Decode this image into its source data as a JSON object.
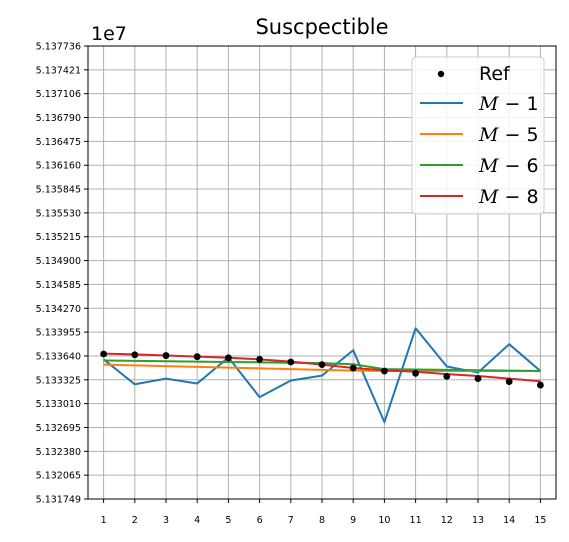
{
  "chart_data": {
    "type": "line",
    "title": "Suscpectible",
    "y_offset_label": "1e7",
    "xlabel": "",
    "ylabel": "",
    "x": [
      1,
      2,
      3,
      4,
      5,
      6,
      7,
      8,
      9,
      10,
      11,
      12,
      13,
      14,
      15
    ],
    "x_tick_labels": [
      "1",
      "2",
      "3",
      "4",
      "5",
      "6",
      "7",
      "8",
      "9",
      "10",
      "11",
      "12",
      "13",
      "14",
      "15"
    ],
    "xlim": [
      0.5,
      15.5
    ],
    "ylim": [
      5.131749,
      5.137736
    ],
    "y_tick_labels": [
      "5.131749",
      "5.132065",
      "5.132380",
      "5.132695",
      "5.133010",
      "5.133325",
      "5.133640",
      "5.133955",
      "5.134270",
      "5.134585",
      "5.134900",
      "5.135215",
      "5.135530",
      "5.135845",
      "5.136160",
      "5.136475",
      "5.136790",
      "5.137106",
      "5.137421",
      "5.137736"
    ],
    "grid": true,
    "legend_position": "top-right",
    "reference": {
      "name": "Ref",
      "values": [
        5.133665,
        5.133655,
        5.133645,
        5.13363,
        5.133615,
        5.133595,
        5.13356,
        5.133525,
        5.13348,
        5.13344,
        5.13341,
        5.13337,
        5.13334,
        5.1333,
        5.133255
      ],
      "color": "#000000"
    },
    "series": [
      {
        "name": "M-1",
        "legend_main": "M",
        "legend_tail": "1",
        "color": "#1f77b4",
        "values": [
          5.133595,
          5.133265,
          5.13334,
          5.133275,
          5.13362,
          5.133095,
          5.133315,
          5.13338,
          5.133715,
          5.132765,
          5.134005,
          5.1335,
          5.13342,
          5.133795,
          5.13344
        ]
      },
      {
        "name": "M-5",
        "legend_main": "M",
        "legend_tail": "5",
        "color": "#ff7f0e",
        "values": [
          5.133525,
          5.133515,
          5.133505,
          5.133495,
          5.133485,
          5.133475,
          5.133465,
          5.133455,
          5.133445,
          5.13344,
          5.13344,
          5.13344,
          5.13344,
          5.13344,
          5.13344
        ]
      },
      {
        "name": "M-6",
        "legend_main": "M",
        "legend_tail": "6",
        "color": "#2ca02c",
        "values": [
          5.13358,
          5.133575,
          5.13357,
          5.133565,
          5.13356,
          5.133555,
          5.13355,
          5.133545,
          5.13353,
          5.133465,
          5.13346,
          5.133455,
          5.13345,
          5.133445,
          5.13344
        ]
      },
      {
        "name": "M-8",
        "legend_main": "M",
        "legend_tail": "8",
        "color": "#d62728",
        "values": [
          5.13367,
          5.13366,
          5.133645,
          5.13363,
          5.133615,
          5.133595,
          5.133565,
          5.133525,
          5.13348,
          5.13345,
          5.13343,
          5.1334,
          5.133375,
          5.13334,
          5.133305
        ]
      }
    ]
  }
}
